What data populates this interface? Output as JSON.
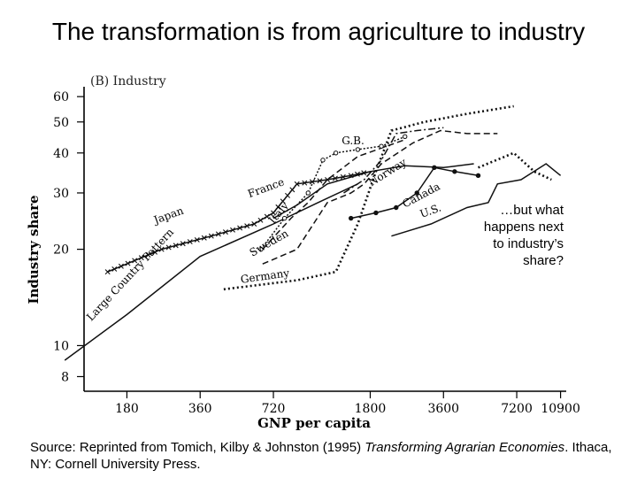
{
  "slide": {
    "title": "The transformation is from agriculture to industry",
    "callout": "…but what happens next to industry’s share?",
    "source_prefix": "Source:  Reprinted from Tomich, Kilby & Johnston (1995) ",
    "source_book": "Transforming Agrarian Economies",
    "source_suffix": ".  Ithaca, NY: Cornell University Press."
  },
  "chart_data": {
    "type": "line",
    "title": "(B) Industry",
    "xlabel": "GNP per capita",
    "ylabel": "Industry share",
    "xscale": "log",
    "yscale": "log",
    "xticks": [
      180,
      360,
      720,
      1800,
      3600,
      7200,
      10900
    ],
    "yticks": [
      8,
      10,
      20,
      30,
      40,
      50,
      60
    ],
    "xlim": [
      120,
      11500
    ],
    "ylim": [
      7.2,
      62
    ],
    "grid": false,
    "series": [
      {
        "name": "Large Country Pattern",
        "style": "solid",
        "x": [
          100,
          180,
          360,
          720,
          1100,
          1600
        ],
        "y": [
          9.0,
          12.5,
          19,
          24,
          28,
          32
        ]
      },
      {
        "name": "Japan",
        "style": "x-marked",
        "x": [
          150,
          250,
          400,
          600,
          720,
          900,
          1200,
          1500,
          1800
        ],
        "y": [
          17,
          20,
          22,
          24,
          26,
          32,
          33,
          34,
          35
        ]
      },
      {
        "name": "France",
        "style": "solid",
        "x": [
          720,
          900,
          1200,
          1800,
          2500,
          3600,
          4800
        ],
        "y": [
          25,
          27.5,
          32,
          35,
          36.5,
          36,
          37
        ]
      },
      {
        "name": "Italy",
        "style": "dashed",
        "x": [
          650,
          850,
          1000,
          1200,
          1600,
          2500
        ],
        "y": [
          20,
          25,
          28,
          33,
          39,
          44
        ]
      },
      {
        "name": "G.B.",
        "style": "dotted-circle",
        "x": [
          640,
          800,
          1000,
          1150,
          1300,
          1600,
          2000,
          2500
        ],
        "y": [
          20,
          25,
          30,
          38,
          40,
          41,
          42,
          45
        ]
      },
      {
        "name": "Sweden",
        "style": "dashed",
        "x": [
          650,
          900,
          1200,
          1500,
          1700,
          2000,
          2700,
          3500,
          4500,
          6000
        ],
        "y": [
          18,
          20,
          28,
          30,
          32,
          37,
          43,
          47,
          46,
          46
        ]
      },
      {
        "name": "Norway",
        "style": "dash-dot",
        "x": [
          1400,
          1700,
          2000,
          2300,
          2800,
          3600
        ],
        "y": [
          30,
          33,
          38,
          46,
          47,
          48
        ]
      },
      {
        "name": "Germany",
        "style": "dotted",
        "x": [
          450,
          900,
          1300,
          1600,
          1900,
          2200,
          3000,
          4500,
          7000
        ],
        "y": [
          15,
          16,
          17,
          24,
          35,
          47,
          50,
          53,
          56
        ]
      },
      {
        "name": "Canada",
        "style": "solid-dot",
        "x": [
          1500,
          1900,
          2300,
          2800,
          3300,
          4000,
          5000
        ],
        "y": [
          25,
          26,
          27,
          30,
          36,
          35,
          34
        ]
      },
      {
        "name": "U.S.",
        "style": "solid",
        "x": [
          2200,
          3200,
          4500,
          5500,
          6000,
          7500,
          9500,
          10900
        ],
        "y": [
          22,
          24,
          27,
          28,
          32,
          33,
          37,
          34
        ]
      },
      {
        "name": "",
        "style": "dotted",
        "x": [
          5000,
          7000,
          8500,
          10000
        ],
        "y": [
          36,
          40,
          35,
          33
        ]
      }
    ]
  }
}
